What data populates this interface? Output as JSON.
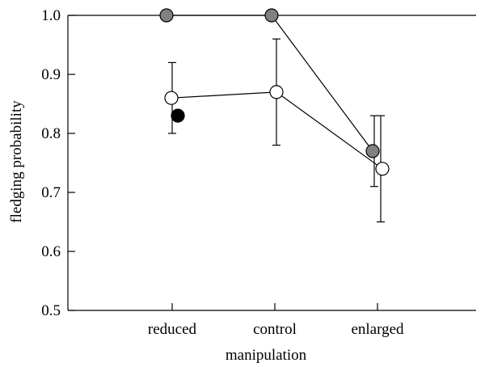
{
  "chart_data": {
    "type": "scatter",
    "title": "",
    "xlabel": "manipulation",
    "ylabel": "fledging probability",
    "categories": [
      "reduced",
      "control",
      "enlarged"
    ],
    "ylim": [
      0.5,
      1.0
    ],
    "yticks": [
      0.5,
      0.6,
      0.7,
      0.8,
      0.9,
      1.0
    ],
    "grid": false,
    "legend": "none",
    "series": [
      {
        "color": "#808080",
        "connected": true,
        "points": [
          {
            "category": "reduced",
            "y": 1.0
          },
          {
            "category": "control",
            "y": 1.0
          },
          {
            "category": "enlarged",
            "y": 0.77
          }
        ],
        "errors": [
          {
            "category": "enlarged",
            "low": 0.71,
            "high": 0.83
          }
        ]
      },
      {
        "color": "#ffffff",
        "connected": true,
        "points": [
          {
            "category": "reduced",
            "y": 0.86
          },
          {
            "category": "control",
            "y": 0.87
          },
          {
            "category": "enlarged",
            "y": 0.74
          }
        ],
        "errors": [
          {
            "category": "reduced",
            "low": 0.8,
            "high": 0.92
          },
          {
            "category": "control",
            "low": 0.78,
            "high": 0.96
          },
          {
            "category": "enlarged",
            "low": 0.65,
            "high": 0.83
          }
        ]
      },
      {
        "color": "#000000",
        "connected": false,
        "points": [
          {
            "category": "reduced",
            "y": 0.83
          }
        ],
        "errors": []
      }
    ]
  }
}
